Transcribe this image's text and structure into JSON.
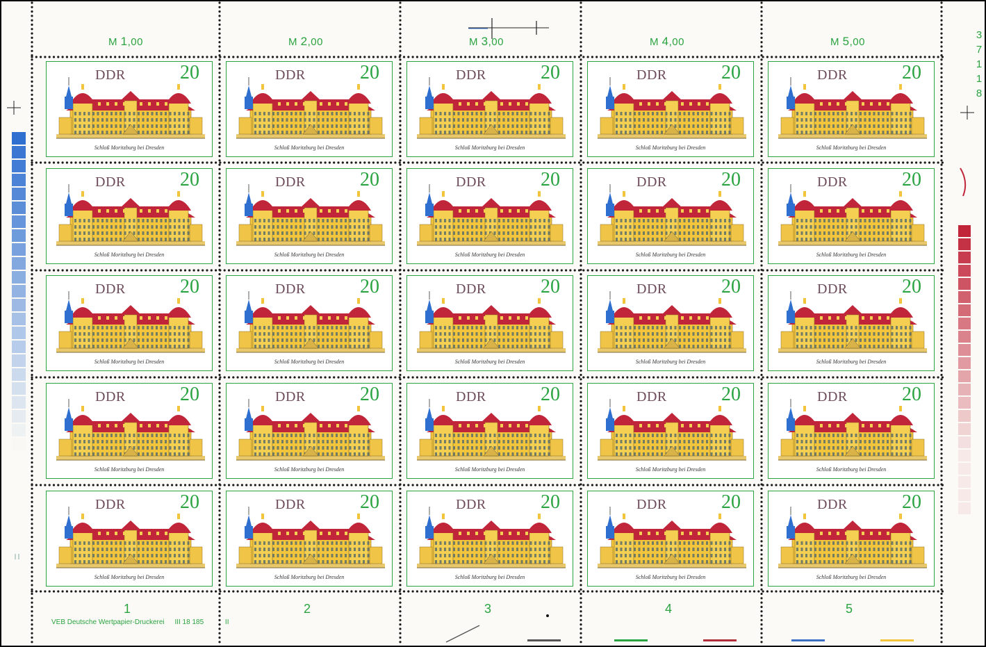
{
  "sheet": {
    "country": "DDR",
    "denomination": "20",
    "caption": "Schloß Moritzburg bei Dresden",
    "value_labels": [
      {
        "prefix": "M",
        "value": "1",
        "decimals": ",00"
      },
      {
        "prefix": "M",
        "value": "2",
        "decimals": ",00"
      },
      {
        "prefix": "M",
        "value": "3",
        "decimals": ",00"
      },
      {
        "prefix": "M",
        "value": "4",
        "decimals": ",00"
      },
      {
        "prefix": "M",
        "value": "5",
        "decimals": ",00"
      }
    ],
    "column_numbers": [
      "1",
      "2",
      "3",
      "4",
      "5"
    ],
    "imprint": "VEB Deutsche Wertpapier-Druckerei",
    "imprint_code": "III 18 185",
    "imprint_suffix": "II",
    "sheet_number_digits": [
      "3",
      "7",
      "1",
      "1",
      "8"
    ],
    "colors": {
      "frame_green": "#2aa341",
      "roof_red": "#c0253a",
      "wall_yellow": "#f2c53d",
      "tower_blue": "#2f6fd0",
      "paper": "#fbfaf6"
    },
    "color_control_bars": [
      "#2aa341",
      "#b0303a",
      "#3a6fc4",
      "#f2c53d",
      "#555555"
    ]
  }
}
